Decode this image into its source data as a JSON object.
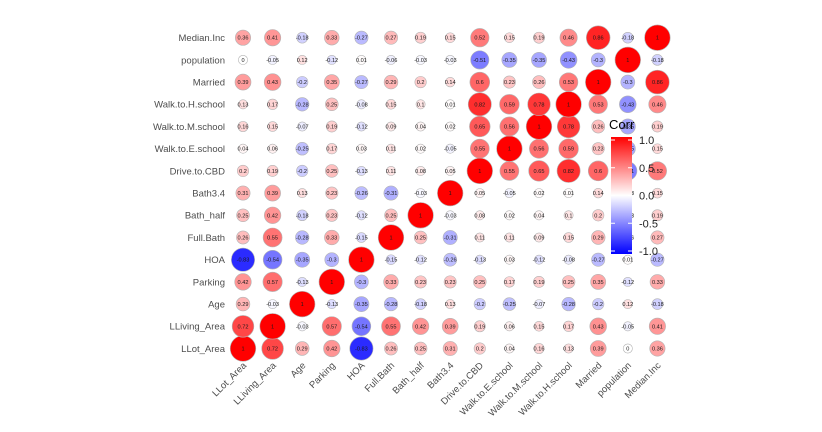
{
  "chart_data": {
    "type": "heatmap",
    "title": "",
    "xlabel": "",
    "ylabel": "",
    "variables": [
      "LLot_Area",
      "LLiving_Area",
      "Age",
      "Parking",
      "HOA",
      "Full.Bath",
      "Bath_half",
      "Bath3.4",
      "Drive.to.CBD",
      "Walk.to.E.school",
      "Walk.to.M.school",
      "Walk.to.H.school",
      "Married",
      "population",
      "Median.Inc"
    ],
    "matrix": [
      [
        1,
        0.72,
        0.29,
        0.42,
        -0.83,
        0.26,
        0.25,
        0.31,
        0.2,
        0.04,
        0.16,
        0.13,
        0.39,
        0,
        0.36
      ],
      [
        0.72,
        1,
        -0.03,
        0.57,
        -0.54,
        0.55,
        0.42,
        0.39,
        0.19,
        0.06,
        0.15,
        0.17,
        0.43,
        -0.05,
        0.41
      ],
      [
        0.29,
        -0.03,
        1,
        -0.13,
        -0.35,
        -0.28,
        -0.18,
        0.13,
        -0.2,
        -0.25,
        -0.07,
        -0.28,
        -0.2,
        0.12,
        -0.18
      ],
      [
        0.42,
        0.57,
        -0.13,
        1,
        -0.3,
        0.33,
        0.23,
        0.23,
        0.25,
        0.17,
        0.19,
        0.25,
        0.35,
        -0.12,
        0.33
      ],
      [
        -0.83,
        -0.54,
        -0.35,
        -0.3,
        1,
        -0.15,
        -0.12,
        -0.26,
        -0.13,
        0.03,
        -0.12,
        -0.08,
        -0.27,
        0.01,
        -0.27
      ],
      [
        0.26,
        0.55,
        -0.28,
        0.33,
        -0.15,
        1,
        0.25,
        -0.31,
        0.11,
        0.11,
        0.09,
        0.15,
        0.29,
        -0.06,
        0.27
      ],
      [
        0.25,
        0.42,
        -0.18,
        0.23,
        -0.12,
        0.25,
        1,
        -0.03,
        0.08,
        0.02,
        0.04,
        0.1,
        0.2,
        -0.03,
        0.19
      ],
      [
        0.31,
        0.39,
        0.13,
        0.23,
        -0.26,
        -0.31,
        -0.03,
        1,
        0.05,
        -0.05,
        0.02,
        0.01,
        0.14,
        -0.03,
        0.15
      ],
      [
        0.2,
        0.19,
        -0.2,
        0.25,
        -0.13,
        0.11,
        0.08,
        0.05,
        1,
        0.55,
        0.65,
        0.82,
        0.6,
        -0.51,
        0.52
      ],
      [
        0.04,
        0.06,
        -0.25,
        0.17,
        0.03,
        0.11,
        0.02,
        -0.05,
        0.55,
        1,
        0.56,
        0.59,
        0.23,
        -0.35,
        0.15
      ],
      [
        0.16,
        0.15,
        -0.07,
        0.19,
        -0.12,
        0.09,
        0.04,
        0.02,
        0.65,
        0.56,
        1,
        0.78,
        0.26,
        -0.35,
        0.19
      ],
      [
        0.13,
        0.17,
        -0.28,
        0.25,
        -0.08,
        0.15,
        0.1,
        0.01,
        0.82,
        0.59,
        0.78,
        1,
        0.53,
        -0.43,
        0.46
      ],
      [
        0.39,
        0.43,
        -0.2,
        0.35,
        -0.27,
        0.29,
        0.2,
        0.14,
        0.6,
        0.23,
        0.26,
        0.53,
        1,
        -0.3,
        0.86
      ],
      [
        0,
        -0.05,
        0.12,
        -0.12,
        0.01,
        -0.06,
        -0.03,
        -0.03,
        -0.51,
        -0.35,
        -0.35,
        -0.43,
        -0.3,
        1,
        -0.18
      ],
      [
        0.36,
        0.41,
        -0.18,
        0.33,
        -0.27,
        0.27,
        0.19,
        0.15,
        0.52,
        0.15,
        0.19,
        0.46,
        0.86,
        -0.18,
        1
      ]
    ],
    "legend": {
      "title": "Corr",
      "ticks": [
        "1.0",
        "0.5",
        "0.0",
        "-0.5",
        "-1.0"
      ],
      "tick_values": [
        1,
        0.5,
        0,
        -0.5,
        -1
      ],
      "placement": "right"
    },
    "colors": {
      "low": "#0000ff",
      "mid": "#ffffff",
      "high": "#ff0000",
      "outline": "#b3b3b3"
    },
    "value_range": [
      -1,
      1
    ]
  }
}
